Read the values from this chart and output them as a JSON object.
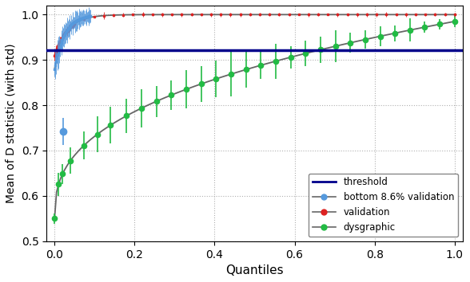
{
  "title": "",
  "xlabel": "Quantiles",
  "ylabel": "Mean of D statistic (with std)",
  "threshold": 0.921,
  "threshold_color": "#00008B",
  "threshold_linewidth": 2.5,
  "xlim": [
    -0.02,
    1.02
  ],
  "ylim": [
    0.5,
    1.02
  ],
  "grid_color": "#b0b0b0",
  "background_color": "#ffffff",
  "legend_labels": [
    "threshold",
    "bottom 8.6% validation",
    "validation",
    "dysgraphic"
  ],
  "colors": {
    "bottom_val": "#5599dd",
    "validation": "#dd2222",
    "dysgraphic": "#22bb44",
    "curve_line": "#666666"
  },
  "font_size_axis_label": 11,
  "font_size_tick": 10
}
